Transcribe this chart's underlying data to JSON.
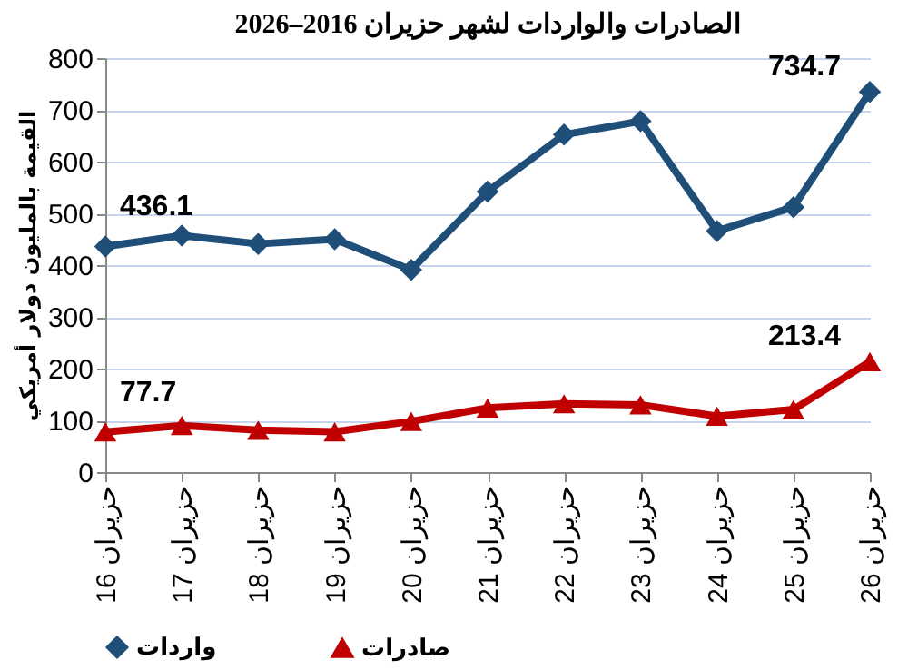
{
  "chart_data": {
    "type": "line",
    "title": "الصادرات والواردات لشهر حزيران 2016–2026",
    "ylabel": "القيمة بالمليون دولار أمريكي",
    "categories": [
      "حزيران 16",
      "حزيران 17",
      "حزيران 18",
      "حزيران 19",
      "حزيران 20",
      "حزيران 21",
      "حزيران 22",
      "حزيران 23",
      "حزيران 24",
      "حزيران 25",
      "حزيران 26"
    ],
    "series": [
      {
        "name": "واردات",
        "color": "#1f4e79",
        "marker": "diamond",
        "values": [
          436.1,
          457,
          441,
          450,
          391,
          542,
          652,
          678,
          466,
          512,
          734.7
        ],
        "value_labels": [
          "436.1",
          null,
          null,
          null,
          null,
          null,
          null,
          null,
          null,
          null,
          "734.7"
        ]
      },
      {
        "name": "صادرات",
        "color": "#c00000",
        "marker": "triangle",
        "values": [
          77.7,
          90,
          81,
          78,
          98,
          124,
          132,
          130,
          108,
          121,
          213.4
        ],
        "value_labels": [
          "77.7",
          null,
          null,
          null,
          null,
          null,
          null,
          null,
          null,
          null,
          "213.4"
        ]
      }
    ],
    "ylim": [
      0,
      800
    ],
    "yticks": [
      0,
      100,
      200,
      300,
      400,
      500,
      600,
      700,
      800
    ],
    "grid": "y",
    "legend": "bottom"
  }
}
